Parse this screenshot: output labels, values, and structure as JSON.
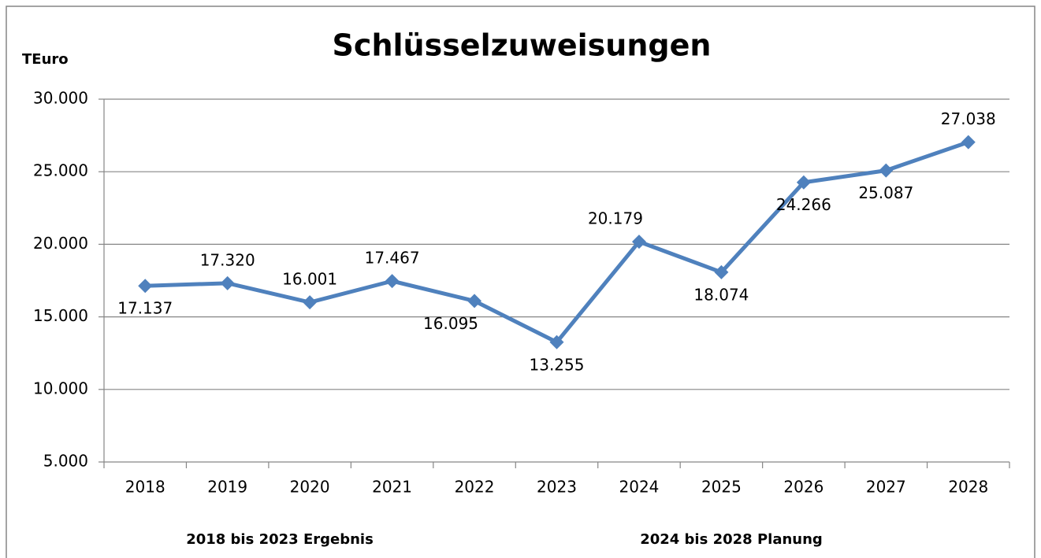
{
  "chart_data": {
    "type": "line",
    "title": "Schlüsselzuweisungen",
    "y_label": "TEuro",
    "annotations": [
      "2018 bis 2023 Ergebnis",
      "2024 bis 2028 Planung"
    ],
    "categories": [
      "2018",
      "2019",
      "2020",
      "2021",
      "2022",
      "2023",
      "2024",
      "2025",
      "2026",
      "2027",
      "2028"
    ],
    "values": [
      17137,
      17320,
      16001,
      17467,
      16095,
      13255,
      20179,
      18074,
      24266,
      25087,
      27038
    ],
    "value_labels": [
      "17.137",
      "17.320",
      "16.001",
      "17.467",
      "16.095",
      "13.255",
      "20.179",
      "18.074",
      "24.266",
      "25.087",
      "27.038"
    ],
    "label_positions": [
      "below",
      "above",
      "above",
      "above",
      "below",
      "below",
      "above",
      "below",
      "below",
      "below",
      "above"
    ],
    "color": "#4f81bd",
    "ylim": [
      5000,
      30000
    ],
    "yticks": [
      {
        "value": 5000,
        "label": "5.000"
      },
      {
        "value": 10000,
        "label": "10.000"
      },
      {
        "value": 15000,
        "label": "15.000"
      },
      {
        "value": 20000,
        "label": "20.000"
      },
      {
        "value": 25000,
        "label": "25.000"
      },
      {
        "value": 30000,
        "label": "30.000"
      }
    ],
    "grid": true
  }
}
